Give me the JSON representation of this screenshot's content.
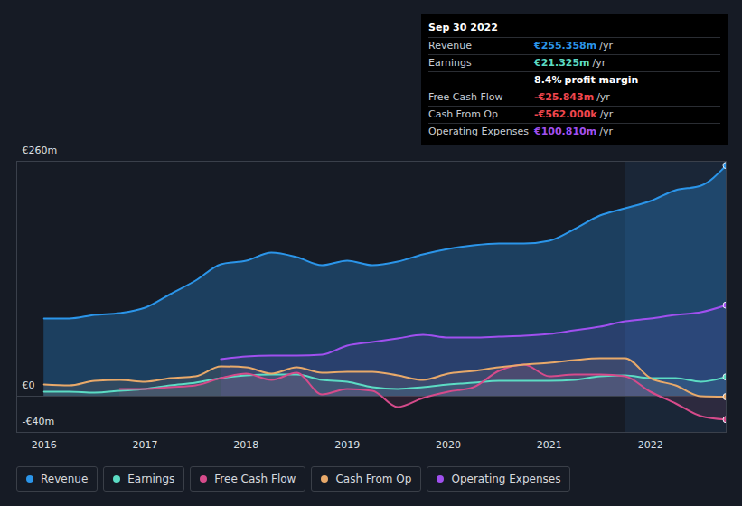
{
  "chart_data": {
    "type": "area",
    "x": [
      2016.0,
      2016.25,
      2016.5,
      2016.75,
      2017.0,
      2017.25,
      2017.5,
      2017.75,
      2018.0,
      2018.25,
      2018.5,
      2018.75,
      2019.0,
      2019.25,
      2019.5,
      2019.75,
      2020.0,
      2020.25,
      2020.5,
      2020.75,
      2021.0,
      2021.25,
      2021.5,
      2021.75,
      2022.0,
      2022.25,
      2022.5,
      2022.75
    ],
    "series": [
      {
        "name": "Revenue",
        "color": "#2b95e9",
        "values": [
          86,
          86,
          90,
          92,
          98,
          113,
          128,
          146,
          150,
          159,
          154,
          145,
          150,
          145,
          149,
          157,
          163,
          167,
          169,
          169,
          172,
          185,
          200,
          208,
          216,
          228,
          233,
          255.358
        ]
      },
      {
        "name": "Earnings",
        "color": "#5cdcc4",
        "values": [
          5,
          5,
          4,
          6,
          8,
          12,
          15,
          20,
          23,
          24,
          24,
          18,
          16,
          10,
          8,
          10,
          13,
          15,
          17,
          17,
          17,
          18,
          22,
          23,
          20,
          20,
          16,
          21.325
        ]
      },
      {
        "name": "Free Cash Flow",
        "color": "#d64b8b",
        "values": [
          null,
          null,
          null,
          8,
          8,
          10,
          12,
          20,
          25,
          18,
          26,
          2,
          8,
          6,
          -12,
          -2,
          5,
          10,
          28,
          35,
          22,
          24,
          24,
          22,
          5,
          -8,
          -22,
          -25.843
        ]
      },
      {
        "name": "Cash From Op",
        "color": "#e8a96a",
        "values": [
          13,
          12,
          17,
          18,
          16,
          20,
          22,
          33,
          32,
          25,
          32,
          26,
          27,
          27,
          23,
          18,
          25,
          28,
          32,
          35,
          37,
          40,
          42,
          42,
          20,
          12,
          0,
          -0.562
        ]
      },
      {
        "name": "Operating Expenses",
        "color": "#a050ef",
        "values": [
          null,
          null,
          null,
          null,
          null,
          null,
          null,
          41,
          44,
          45,
          45,
          46,
          56,
          60,
          64,
          68,
          65,
          65,
          66,
          67,
          69,
          73,
          77,
          83,
          86,
          90,
          93,
          100.81
        ]
      }
    ],
    "xlim": [
      2015.73,
      2022.75
    ],
    "xticks": [
      2016,
      2017,
      2018,
      2019,
      2020,
      2021,
      2022
    ],
    "ylim": [
      -40,
      260
    ],
    "yticks": [
      {
        "value": 260,
        "label": "€260m"
      },
      {
        "value": 0,
        "label": "€0"
      },
      {
        "value": -40,
        "label": "-€40m"
      }
    ],
    "grid": true,
    "legend": "bottom",
    "highlight_x": [
      2021.75,
      2022.75
    ],
    "tooltip": {
      "date": "Sep 30 2022",
      "rows": [
        {
          "label": "Revenue",
          "value": "€255.358m",
          "unit": "/yr"
        },
        {
          "label": "Earnings",
          "value": "€21.325m",
          "unit": "/yr"
        },
        {
          "label": null,
          "value": "8.4%",
          "unit": "profit margin"
        },
        {
          "label": "Free Cash Flow",
          "value": "-€25.843m",
          "unit": "/yr"
        },
        {
          "label": "Cash From Op",
          "value": "-€562.000k",
          "unit": "/yr"
        },
        {
          "label": "Operating Expenses",
          "value": "€100.810m",
          "unit": "/yr"
        }
      ]
    }
  }
}
